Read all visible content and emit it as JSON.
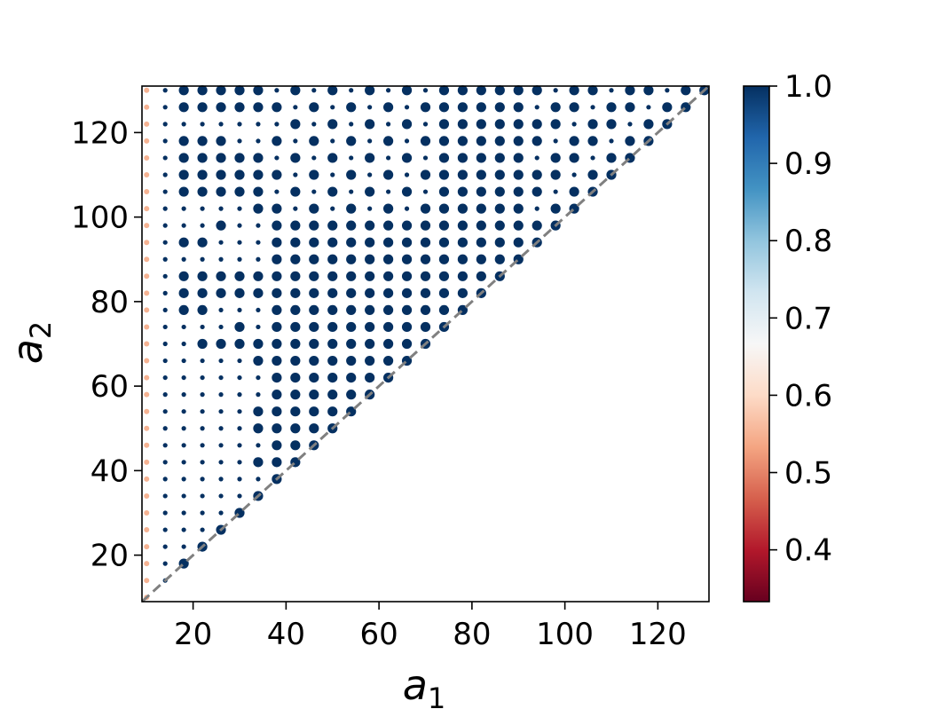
{
  "chart_data": {
    "type": "scatter",
    "title": "",
    "xlabel": "a",
    "xlabel_sub": "1",
    "ylabel": "a",
    "ylabel_sub": "2",
    "xlim": [
      9,
      131
    ],
    "ylim": [
      9,
      131
    ],
    "xticks": [
      20,
      40,
      60,
      80,
      100,
      120
    ],
    "yticks": [
      20,
      40,
      60,
      80,
      100,
      120
    ],
    "grid": false,
    "diagonal_line": {
      "style": "dashed",
      "color": "#808080",
      "from": [
        9,
        9
      ],
      "to": [
        131,
        131
      ]
    },
    "lattice": {
      "start": 10,
      "step": 4,
      "max": 130,
      "constraint": "a2 >= a1"
    },
    "marker_rule": {
      "a1_eq_10": {
        "value": 0.55,
        "size": "small"
      },
      "a1_gt_10": {
        "value": 1.0,
        "size": "large_or_small"
      }
    },
    "colorbar": {
      "colormap": "RdBu",
      "min": 0.333,
      "max": 1.0,
      "ticks": [
        "0.4",
        "0.5",
        "0.6",
        "0.7",
        "0.8",
        "0.9",
        "1.0"
      ],
      "tick_values": [
        0.4,
        0.5,
        0.6,
        0.7,
        0.8,
        0.9,
        1.0
      ],
      "stops": [
        "#67001f",
        "#b2182b",
        "#d6604d",
        "#f4a582",
        "#fddbc7",
        "#f7f7f7",
        "#d1e5f0",
        "#92c5de",
        "#4393c3",
        "#2166ac",
        "#053061"
      ]
    }
  }
}
